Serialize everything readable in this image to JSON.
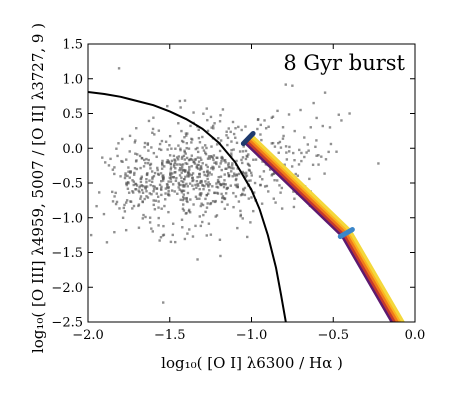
{
  "chart_data": {
    "type": "scatter",
    "title": "",
    "annotation": "8 Gyr burst",
    "xlabel": "log₁₀( [O I] λ6300 / Hα )",
    "ylabel": "log₁₀( [O III] λ4959, 5007 / [O II] λ3727, 9 )",
    "xlim": [
      -2.0,
      0.0
    ],
    "ylim": [
      -2.5,
      1.5
    ],
    "xticks": [
      -2.0,
      -1.5,
      -1.0,
      -0.5,
      0.0
    ],
    "xtick_labels": [
      "−2.0",
      "−1.5",
      "−1.0",
      "−0.5",
      "0.0"
    ],
    "yticks": [
      1.5,
      1.0,
      0.5,
      0.0,
      -0.5,
      -1.0,
      -1.5,
      -2.0,
      -2.5
    ],
    "ytick_labels": [
      "1.5",
      "1.0",
      "0.5",
      "0.0",
      "−0.5",
      "−1.0",
      "−1.5",
      "−2.0",
      "−2.5"
    ],
    "grid": false,
    "scatter": {
      "color": "#555555",
      "clusters": [
        {
          "cx": -1.35,
          "cy": -0.38,
          "sx": 0.22,
          "sy": 0.28,
          "n": 520
        },
        {
          "cx": -1.7,
          "cy": -0.45,
          "sx": 0.1,
          "sy": 0.25,
          "n": 80
        },
        {
          "cx": -0.8,
          "cy": -0.2,
          "sx": 0.18,
          "sy": 0.38,
          "n": 90
        },
        {
          "cx": -1.25,
          "cy": 0.25,
          "sx": 0.22,
          "sy": 0.22,
          "n": 60
        },
        {
          "cx": -1.5,
          "cy": -1.05,
          "sx": 0.18,
          "sy": 0.25,
          "n": 45
        }
      ],
      "outliers": [
        {
          "x": -1.81,
          "y": 1.15
        },
        {
          "x": -1.54,
          "y": -2.22
        },
        {
          "x": -1.33,
          "y": -1.6
        },
        {
          "x": -0.55,
          "y": 0.8
        },
        {
          "x": -0.52,
          "y": 0.3
        },
        {
          "x": -0.45,
          "y": 0.4
        },
        {
          "x": -0.62,
          "y": 0.65
        },
        {
          "x": -0.75,
          "y": 0.9
        },
        {
          "x": -1.19,
          "y": -1.55
        },
        {
          "x": -0.48,
          "y": -0.05
        },
        {
          "x": -0.7,
          "y": 0.55
        },
        {
          "x": -0.4,
          "y": 0.5
        }
      ]
    },
    "demarcation_curve": {
      "color": "#000000",
      "points": [
        {
          "x": -2.0,
          "y": 0.81
        },
        {
          "x": -1.9,
          "y": 0.78
        },
        {
          "x": -1.8,
          "y": 0.74
        },
        {
          "x": -1.7,
          "y": 0.68
        },
        {
          "x": -1.6,
          "y": 0.62
        },
        {
          "x": -1.5,
          "y": 0.53
        },
        {
          "x": -1.4,
          "y": 0.42
        },
        {
          "x": -1.3,
          "y": 0.28
        },
        {
          "x": -1.2,
          "y": 0.08
        },
        {
          "x": -1.1,
          "y": -0.2
        },
        {
          "x": -1.0,
          "y": -0.6
        },
        {
          "x": -0.95,
          "y": -0.88
        },
        {
          "x": -0.9,
          "y": -1.25
        },
        {
          "x": -0.85,
          "y": -1.72
        },
        {
          "x": -0.82,
          "y": -2.1
        },
        {
          "x": -0.79,
          "y": -2.5
        }
      ]
    },
    "model_track": {
      "points": [
        {
          "x": -1.02,
          "y": 0.14
        },
        {
          "x": -0.42,
          "y": -1.22
        },
        {
          "x": -0.08,
          "y": -2.6
        }
      ],
      "bands": [
        {
          "color": "#5e1a6f",
          "offset": 5.0
        },
        {
          "color": "#c5392e",
          "offset": 2.5
        },
        {
          "color": "#f07a1a",
          "offset": 0.0
        },
        {
          "color": "#fbb320",
          "offset": -2.5
        },
        {
          "color": "#f4d83c",
          "offset": -4.5
        }
      ],
      "marker_colors": [
        "#1f3a6e",
        "#3b86c9"
      ]
    }
  }
}
